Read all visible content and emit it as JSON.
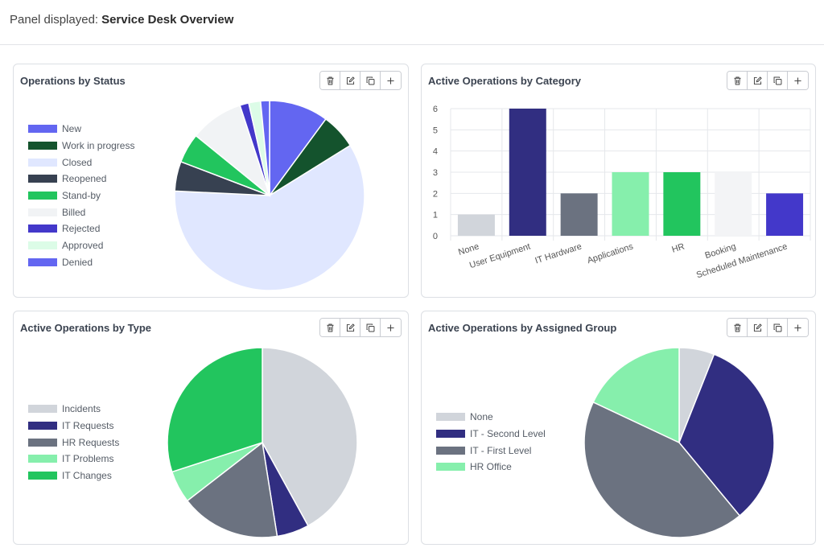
{
  "header": {
    "prefix": "Panel displayed:",
    "panel_name": "Service Desk Overview"
  },
  "panels": {
    "status": {
      "title": "Operations by Status"
    },
    "category": {
      "title": "Active Operations by Category"
    },
    "type": {
      "title": "Active Operations by Type"
    },
    "group": {
      "title": "Active Operations by Assigned Group"
    }
  },
  "toolbar_icons": [
    "trash-icon",
    "edit-icon",
    "duplicate-icon",
    "plus-icon"
  ],
  "chart_data": [
    {
      "type": "pie",
      "title": "Operations by Status",
      "legend_position": "left",
      "series": [
        {
          "name": "New",
          "value": 10,
          "color": "#6366f1"
        },
        {
          "name": "Work in progress",
          "value": 6,
          "color": "#14532d"
        },
        {
          "name": "Closed",
          "value": 59,
          "color": "#e0e7ff"
        },
        {
          "name": "Reopened",
          "value": 5,
          "color": "#374151"
        },
        {
          "name": "Stand-by",
          "value": 5,
          "color": "#22c55e"
        },
        {
          "name": "Billed",
          "value": 9,
          "color": "#f1f3f5"
        },
        {
          "name": "Rejected",
          "value": 1.5,
          "color": "#4338ca"
        },
        {
          "name": "Approved",
          "value": 2,
          "color": "#dcfce7"
        },
        {
          "name": "Denied",
          "value": 1.5,
          "color": "#6366f1"
        }
      ]
    },
    {
      "type": "bar",
      "title": "Active Operations by Category",
      "categories": [
        "None",
        "User Equipment",
        "IT Hardware",
        "Applications",
        "HR",
        "Booking",
        "Scheduled Maintenance"
      ],
      "values": [
        1,
        6,
        2,
        3,
        3,
        3,
        2
      ],
      "colors": [
        "#d1d5db",
        "#312e81",
        "#6b7280",
        "#86efac",
        "#22c55e",
        "#f3f4f6",
        "#4338ca"
      ],
      "ylim": [
        0,
        6
      ],
      "yticks": [
        0,
        1,
        2,
        3,
        4,
        5,
        6
      ],
      "grid": true
    },
    {
      "type": "pie",
      "title": "Active Operations by Type",
      "legend_position": "left",
      "series": [
        {
          "name": "Incidents",
          "value": 42,
          "color": "#d1d5db"
        },
        {
          "name": "IT Requests",
          "value": 5.5,
          "color": "#312e81"
        },
        {
          "name": "HR Requests",
          "value": 17,
          "color": "#6b7280"
        },
        {
          "name": "IT Problems",
          "value": 5.5,
          "color": "#86efac"
        },
        {
          "name": "IT Changes",
          "value": 30,
          "color": "#22c55e"
        }
      ]
    },
    {
      "type": "pie",
      "title": "Active Operations by Assigned Group",
      "legend_position": "left",
      "series": [
        {
          "name": "None",
          "value": 6,
          "color": "#d1d5db"
        },
        {
          "name": "IT - Second Level",
          "value": 33,
          "color": "#312e81"
        },
        {
          "name": "IT - First Level",
          "value": 43,
          "color": "#6b7280"
        },
        {
          "name": "HR Office",
          "value": 18,
          "color": "#86efac"
        }
      ]
    }
  ]
}
